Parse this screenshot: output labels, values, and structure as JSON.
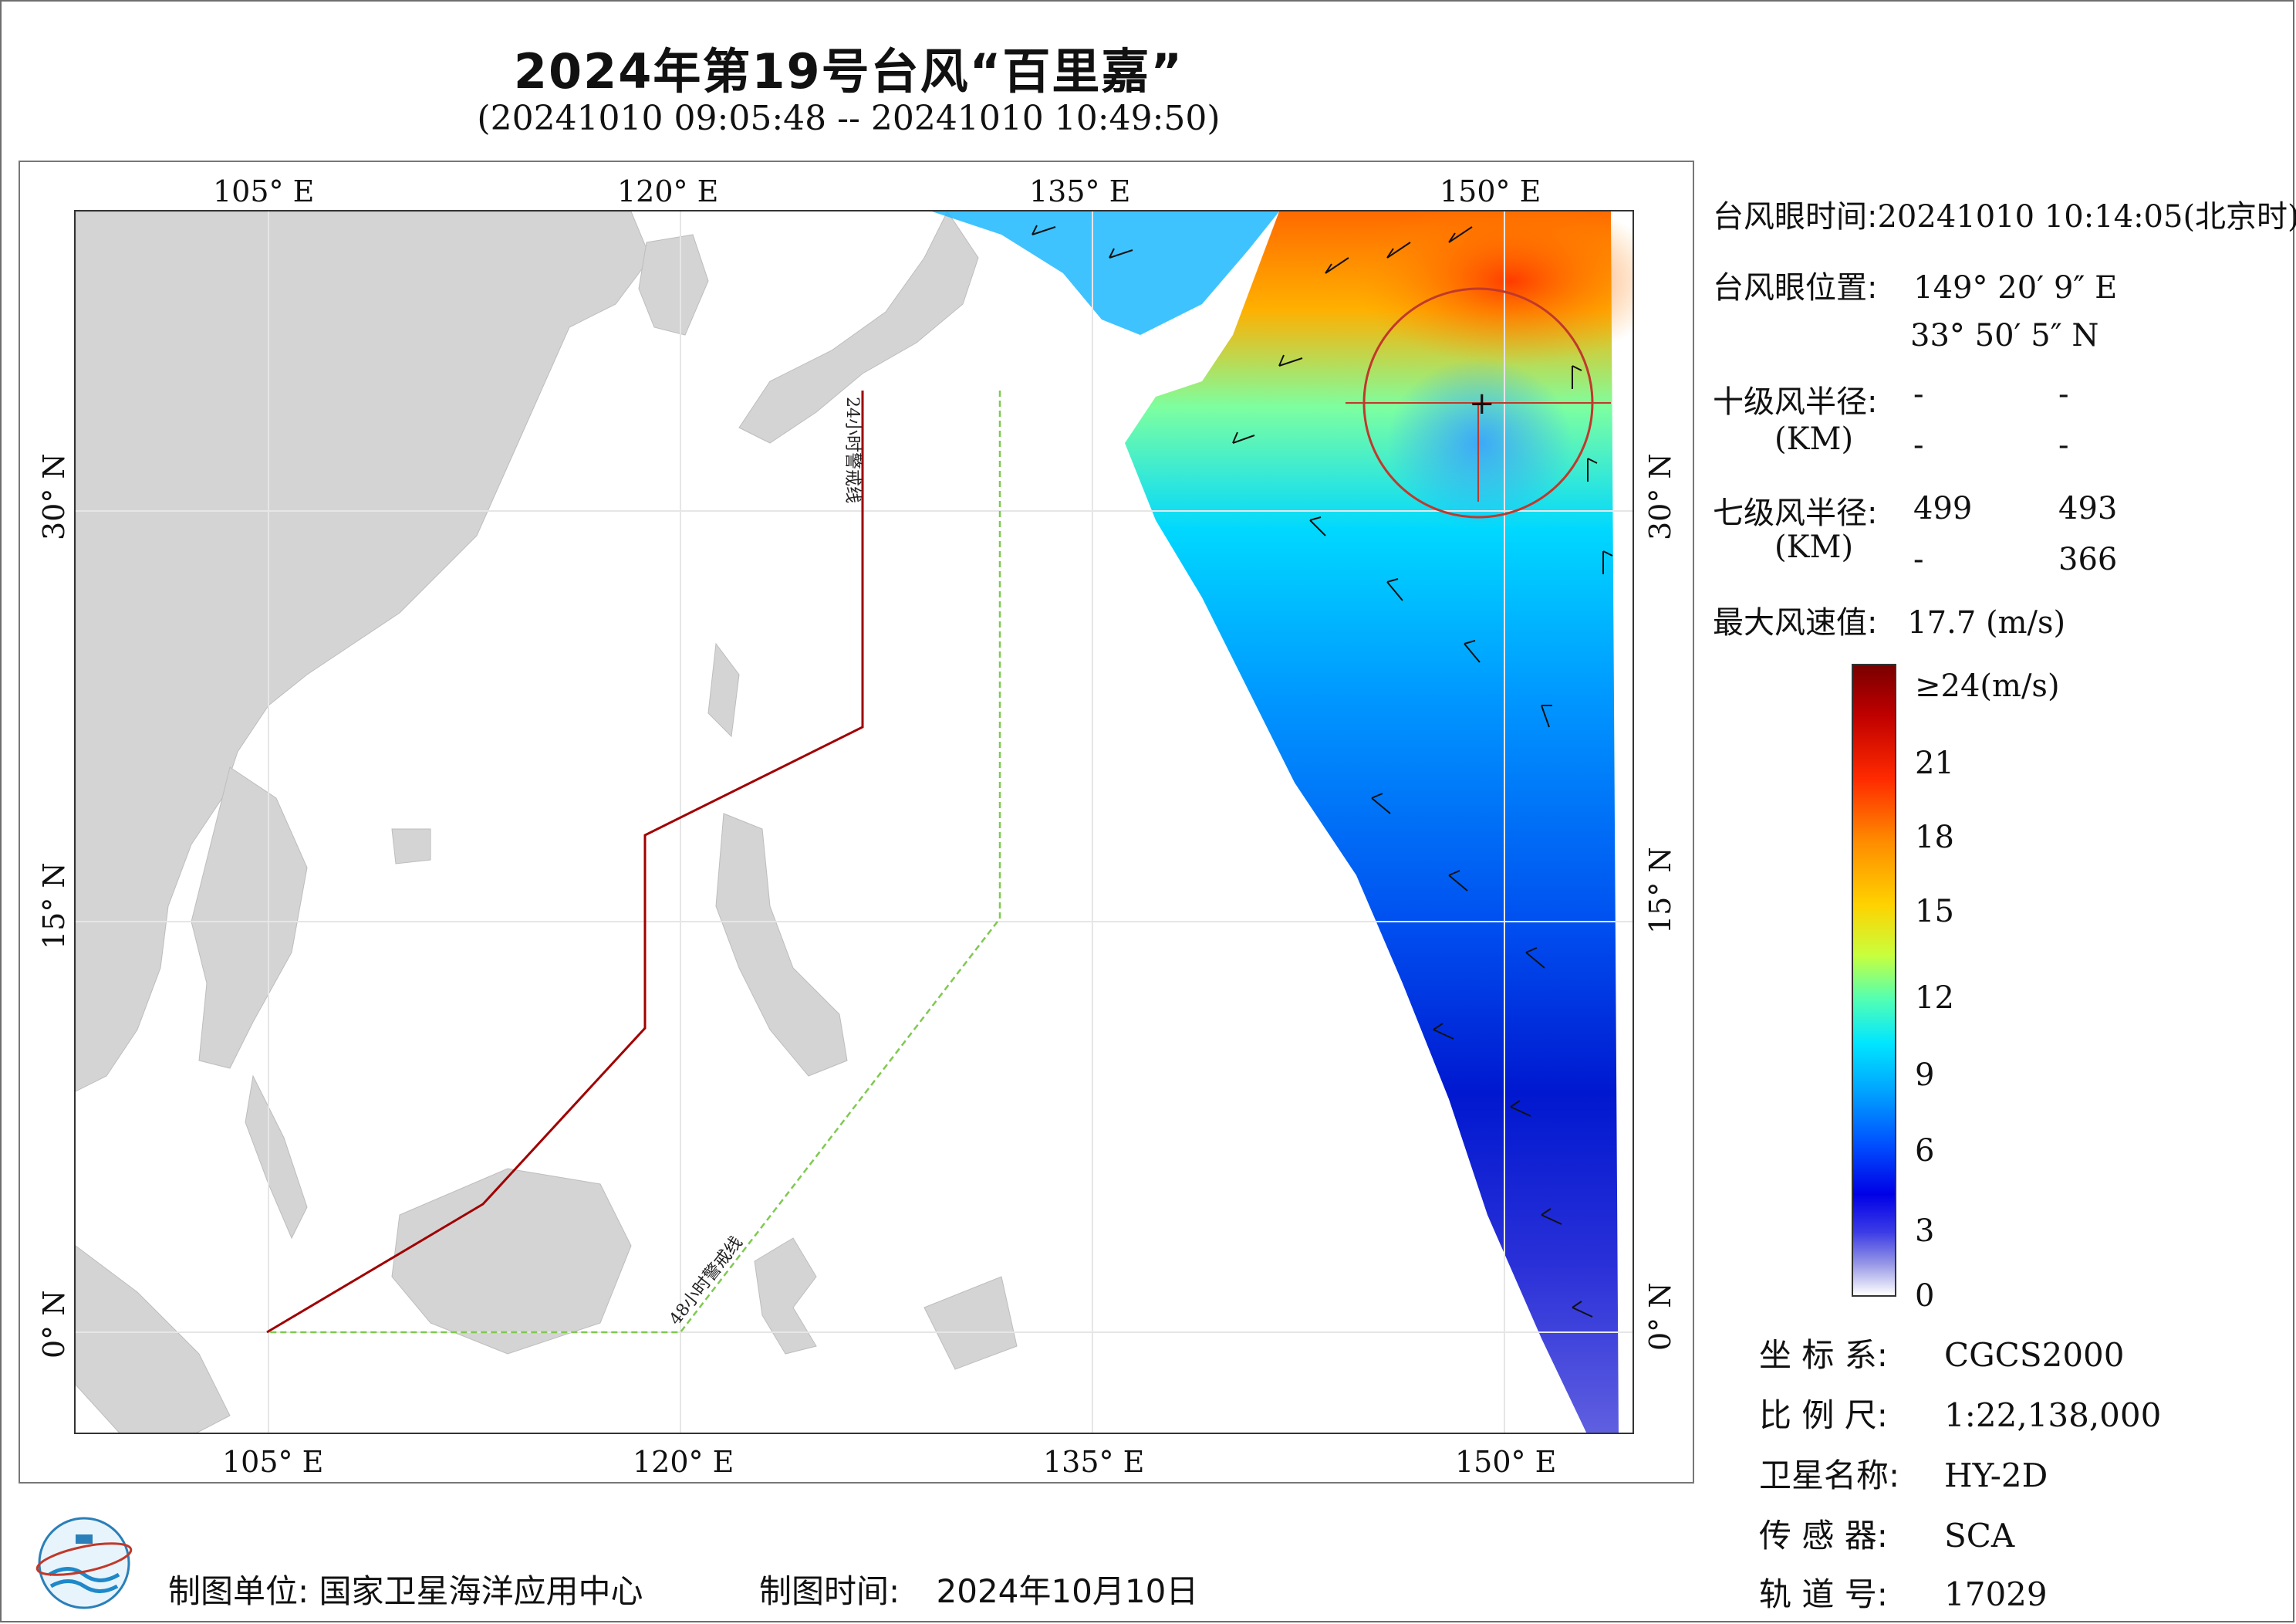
{
  "title": "2024年第19号台风“百里嘉”",
  "subtitle": "(20241010 09:05:48 -- 20241010 10:49:50)",
  "map": {
    "lon_ticks": [
      "105° E",
      "120° E",
      "135° E",
      "150° E"
    ],
    "lat_ticks": [
      "30° N",
      "15° N",
      "0° N"
    ],
    "warning_line_24h": "24小时警戒线",
    "warning_line_48h": "48小时警戒线",
    "colors": {
      "land": "#d4d4d4",
      "warning_24h": "#a00000",
      "warning_48h": "#7fc94f",
      "typhoon_circle": "#c0392b"
    }
  },
  "info": {
    "eye_time_label": "台风眼时间:",
    "eye_time_value": "20241010 10:14:05(北京时)",
    "eye_pos_label": "台风眼位置:",
    "eye_lon": "149° 20′ 9″ E",
    "eye_lat": "33° 50′ 5″ N",
    "r10_label": "十级风半径:",
    "r10_unit": "(KM)",
    "r10_values": [
      "-",
      "-",
      "-",
      "-"
    ],
    "r7_label": "七级风半径:",
    "r7_unit": "(KM)",
    "r7_values": [
      "499",
      "493",
      "-",
      "366"
    ],
    "max_wind_label": "最大风速值:",
    "max_wind_value": "17.7  (m/s)"
  },
  "colorbar": {
    "labels": [
      "≥24(m/s)",
      "21",
      "18",
      "15",
      "12",
      "9",
      "6",
      "3",
      "0"
    ]
  },
  "meta": {
    "crs_label": "坐 标 系:",
    "crs_value": "CGCS2000",
    "scale_label": "比 例 尺:",
    "scale_value": "1:22,138,000",
    "sat_label": "卫星名称:",
    "sat_value": "HY-2D",
    "sensor_label": "传 感 器:",
    "sensor_value": "SCA",
    "orbit_label": "轨 道 号:",
    "orbit_value": "17029"
  },
  "footer": {
    "producer_label": "制图单位:",
    "producer_value": "国家卫星海洋应用中心",
    "date_label": "制图时间:",
    "date_value": "2024年10月10日"
  }
}
